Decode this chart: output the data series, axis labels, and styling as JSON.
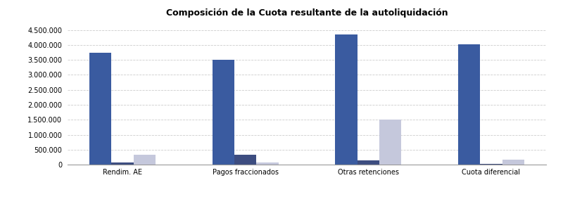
{
  "title": "Composición de la Cuota resultante de la autoliquidación",
  "categories": [
    "Rendim. AE",
    "Pagos fraccionados",
    "Otras retenciones",
    "Cuota diferencial"
  ],
  "series": {
    "Directa": [
      3750000,
      3500000,
      4350000,
      4020000
    ],
    "Objetiva no agrícola": [
      60000,
      330000,
      145000,
      30000
    ],
    "Objetiva agrícola": [
      320000,
      60000,
      1500000,
      165000
    ]
  },
  "colors": {
    "Directa": "#3A5BA0",
    "Objetiva no agrícola": "#3D4D80",
    "Objetiva agrícola": "#C5C8DC"
  },
  "ylim": [
    0,
    4800000
  ],
  "yticks": [
    0,
    500000,
    1000000,
    1500000,
    2000000,
    2500000,
    3000000,
    3500000,
    4000000,
    4500000
  ],
  "background_color": "#FFFFFF",
  "grid_color": "#CCCCCC",
  "bar_width": 0.18,
  "title_fontsize": 9,
  "tick_fontsize": 7,
  "legend_fontsize": 7.5
}
